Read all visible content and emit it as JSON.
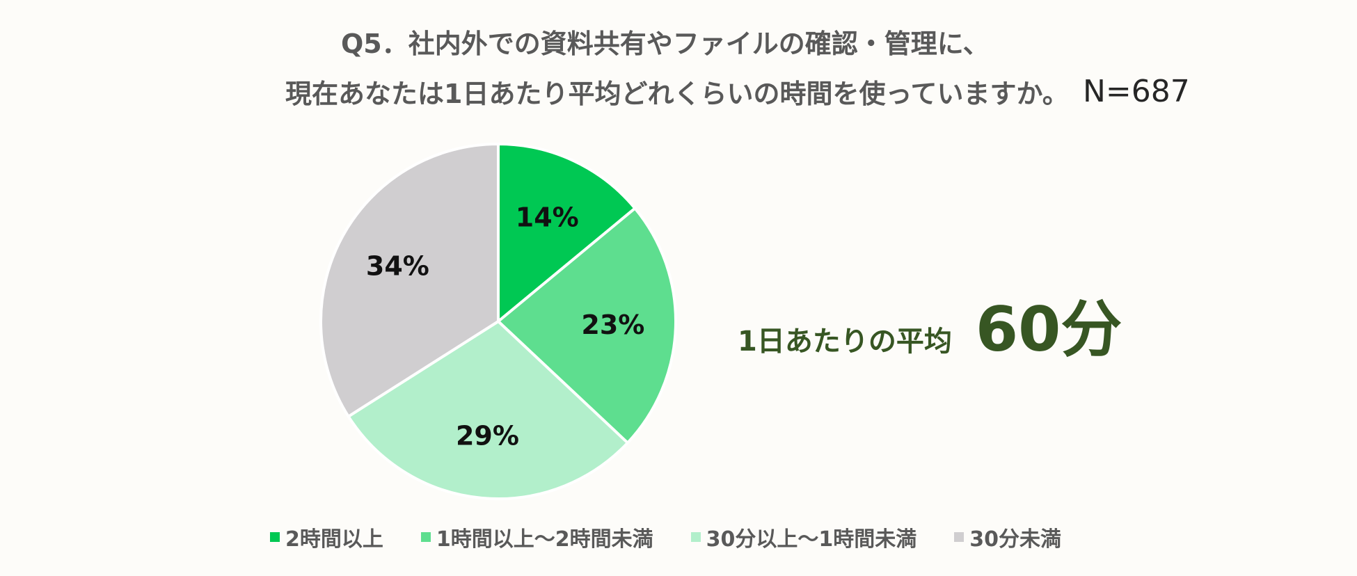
{
  "title": {
    "line1": "Q5．社内外での資料共有やファイルの確認・管理に、",
    "line2": "現在あなたは1日あたり平均どれくらいの時間を使っていますか。",
    "sample_size": "N=687"
  },
  "average": {
    "caption": "1日あたりの平均",
    "value": "60分",
    "color": "#375623"
  },
  "chart_data": {
    "type": "pie",
    "categories": [
      "2時間以上",
      "1時間以上～2時間未満",
      "30分以上～1時間未満",
      "30分未満"
    ],
    "values": [
      14,
      23,
      29,
      34
    ],
    "labels": [
      "14%",
      "23%",
      "29%",
      "34%"
    ],
    "colors": [
      "#00c853",
      "#5ede8f",
      "#b2efcb",
      "#d0ced0"
    ],
    "start": "12 o'clock",
    "direction": "clockwise",
    "legend_position": "bottom"
  }
}
